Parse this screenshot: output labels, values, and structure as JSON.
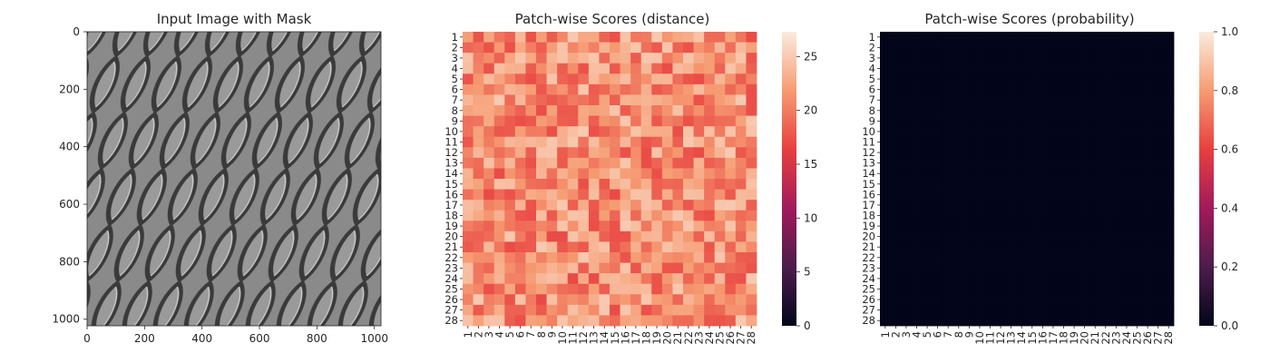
{
  "chart_data": [
    {
      "type": "image",
      "title": "Input Image with Mask",
      "xlim": [
        0,
        1023
      ],
      "ylim": [
        1023,
        0
      ],
      "x_ticks": [
        "0",
        "200",
        "400",
        "600",
        "800",
        "1000"
      ],
      "y_ticks": [
        "0",
        "200",
        "400",
        "600",
        "800",
        "1000"
      ],
      "image_content": "grayscale woven diamond texture"
    },
    {
      "type": "heatmap",
      "title": "Patch-wise Scores (distance)",
      "rows": 28,
      "cols": 28,
      "row_labels": [
        "1",
        "2",
        "3",
        "4",
        "5",
        "6",
        "7",
        "8",
        "9",
        "10",
        "11",
        "12",
        "13",
        "14",
        "15",
        "16",
        "17",
        "18",
        "19",
        "20",
        "21",
        "22",
        "23",
        "24",
        "25",
        "26",
        "27",
        "28"
      ],
      "col_labels": [
        "1",
        "2",
        "3",
        "4",
        "5",
        "6",
        "7",
        "8",
        "9",
        "10",
        "11",
        "12",
        "13",
        "14",
        "15",
        "16",
        "17",
        "18",
        "19",
        "20",
        "21",
        "22",
        "23",
        "24",
        "25",
        "26",
        "27",
        "28"
      ],
      "value_range": [
        0,
        27.3
      ],
      "typical_values": [
        17,
        25
      ],
      "colorbar": {
        "ticks": [
          "0",
          "5",
          "10",
          "15",
          "20",
          "25"
        ],
        "tick_values": [
          0,
          5,
          10,
          15,
          20,
          25
        ],
        "min": 0,
        "max": 27.3,
        "colormap": "rocket"
      }
    },
    {
      "type": "heatmap",
      "title": "Patch-wise Scores (probability)",
      "rows": 28,
      "cols": 28,
      "row_labels": [
        "1",
        "2",
        "3",
        "4",
        "5",
        "6",
        "7",
        "8",
        "9",
        "10",
        "11",
        "12",
        "13",
        "14",
        "15",
        "16",
        "17",
        "18",
        "19",
        "20",
        "21",
        "22",
        "23",
        "24",
        "25",
        "26",
        "27",
        "28"
      ],
      "col_labels": [
        "1",
        "2",
        "3",
        "4",
        "5",
        "6",
        "7",
        "8",
        "9",
        "10",
        "11",
        "12",
        "13",
        "14",
        "15",
        "16",
        "17",
        "18",
        "19",
        "20",
        "21",
        "22",
        "23",
        "24",
        "25",
        "26",
        "27",
        "28"
      ],
      "value_range": [
        0,
        1.0
      ],
      "typical_values": [
        0.0,
        0.0
      ],
      "colorbar": {
        "ticks": [
          "0.0",
          "0.2",
          "0.4",
          "0.6",
          "0.8",
          "1.0"
        ],
        "tick_values": [
          0,
          0.2,
          0.4,
          0.6,
          0.8,
          1.0
        ],
        "min": 0,
        "max": 1.0,
        "colormap": "rocket"
      }
    }
  ]
}
